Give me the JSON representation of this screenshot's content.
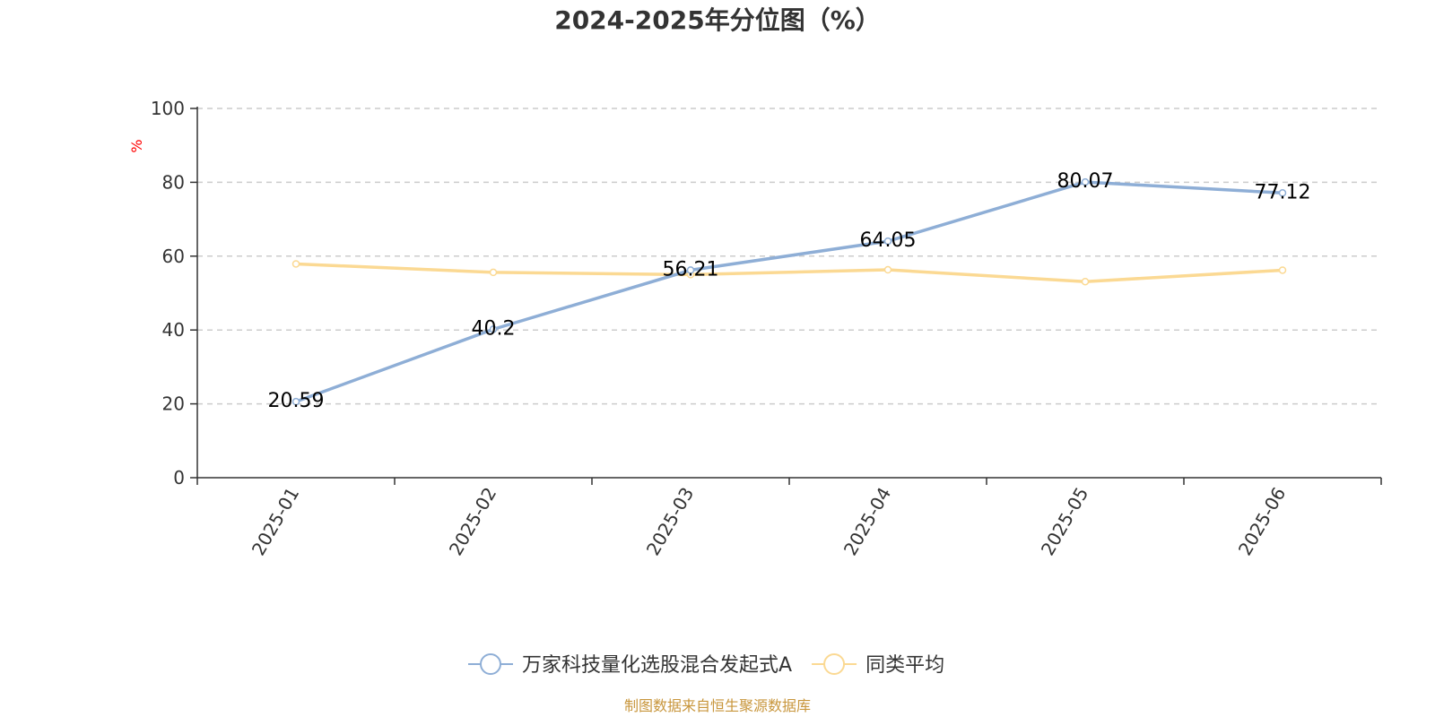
{
  "chart_data": {
    "type": "line",
    "title": "2024-2025年分位图（%）",
    "ylabel": "%",
    "xlabel": "",
    "categories": [
      "2025-01",
      "2025-02",
      "2025-03",
      "2025-04",
      "2025-05",
      "2025-06"
    ],
    "ylim": [
      0,
      100
    ],
    "yticks": [
      0,
      20,
      40,
      60,
      80,
      100
    ],
    "grid": true,
    "legend_position": "bottom",
    "series": [
      {
        "name": "万家科技量化选股混合发起式A",
        "color": "#8eaed6",
        "values": [
          20.59,
          40.2,
          56.21,
          64.05,
          80.07,
          77.12
        ],
        "labels": [
          "20.59",
          "40.2",
          "56.21",
          "64.05",
          "80.07",
          "77.12"
        ]
      },
      {
        "name": "同类平均",
        "color": "#fbd993",
        "values": [
          57.9,
          55.6,
          55.0,
          56.3,
          53.1,
          56.2
        ]
      }
    ]
  },
  "footer": {
    "source": "制图数据来自恒生聚源数据库"
  }
}
